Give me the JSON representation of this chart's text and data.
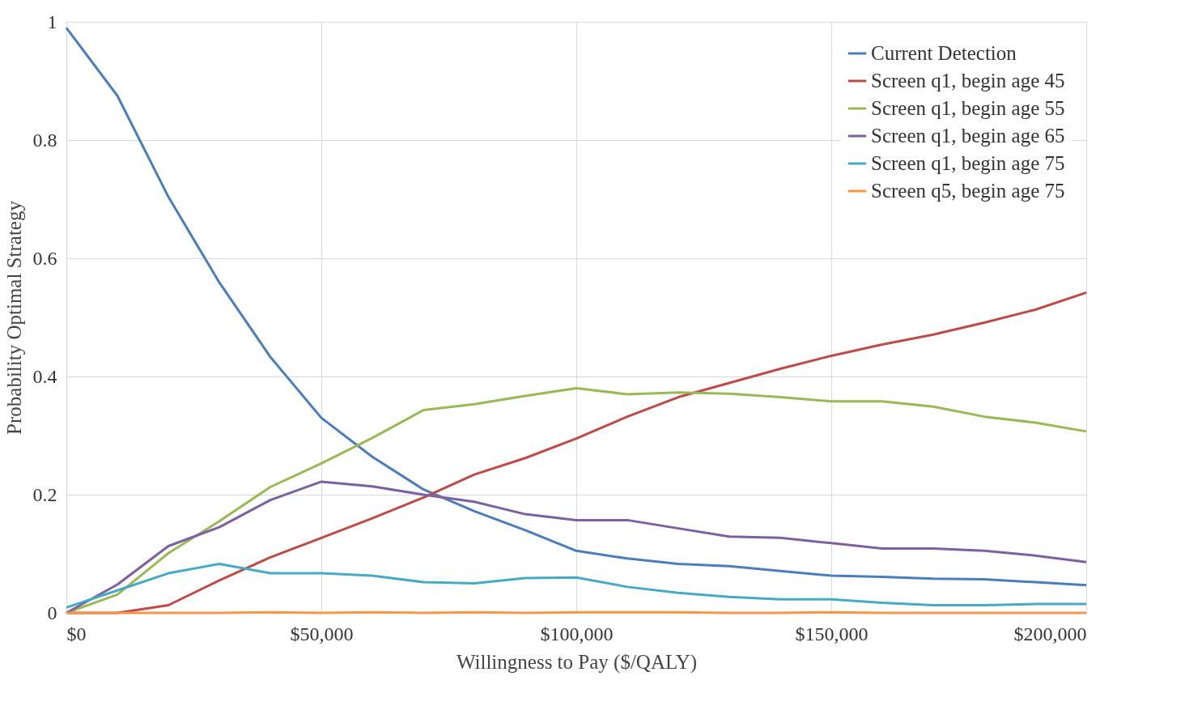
{
  "chart_data": {
    "type": "line",
    "xlabel": "Willingness to Pay ($/QALY)",
    "ylabel": "Probability Optimal Strategy",
    "x": [
      0,
      10000,
      20000,
      30000,
      40000,
      50000,
      60000,
      70000,
      80000,
      90000,
      100000,
      110000,
      120000,
      130000,
      140000,
      150000,
      160000,
      170000,
      180000,
      190000,
      200000
    ],
    "series": [
      {
        "name": "Current Detection",
        "color": "#4a7ebb",
        "values": [
          0.99,
          0.875,
          0.704,
          0.559,
          0.433,
          0.33,
          0.264,
          0.209,
          0.172,
          0.14,
          0.105,
          0.092,
          0.083,
          0.079,
          0.071,
          0.063,
          0.061,
          0.058,
          0.057,
          0.052,
          0.047
        ]
      },
      {
        "name": "Screen q1, begin age 45",
        "color": "#be4b48",
        "values": [
          0,
          0,
          0.013,
          0.055,
          0.094,
          0.127,
          0.16,
          0.195,
          0.234,
          0.262,
          0.295,
          0.332,
          0.365,
          0.389,
          0.413,
          0.435,
          0.454,
          0.471,
          0.491,
          0.513,
          0.542
        ]
      },
      {
        "name": "Screen q1, begin age 55",
        "color": "#98b954",
        "values": [
          0,
          0.031,
          0.101,
          0.155,
          0.213,
          0.253,
          0.296,
          0.343,
          0.353,
          0.367,
          0.38,
          0.37,
          0.373,
          0.371,
          0.365,
          0.358,
          0.358,
          0.349,
          0.332,
          0.322,
          0.307
        ]
      },
      {
        "name": "Screen q1, begin age 65",
        "color": "#7d60a0",
        "values": [
          0,
          0.048,
          0.113,
          0.145,
          0.191,
          0.222,
          0.214,
          0.2,
          0.188,
          0.167,
          0.157,
          0.157,
          0.143,
          0.129,
          0.127,
          0.118,
          0.109,
          0.109,
          0.105,
          0.097,
          0.086
        ]
      },
      {
        "name": "Screen q1, begin age 75",
        "color": "#46aac5",
        "values": [
          0.009,
          0.038,
          0.067,
          0.083,
          0.067,
          0.067,
          0.063,
          0.052,
          0.05,
          0.059,
          0.06,
          0.044,
          0.034,
          0.027,
          0.023,
          0.023,
          0.017,
          0.013,
          0.013,
          0.015,
          0.015
        ]
      },
      {
        "name": "Screen q5, begin age 75",
        "color": "#f79646",
        "values": [
          0,
          0,
          0,
          0,
          0.001,
          0,
          0.001,
          0,
          0.001,
          0,
          0.001,
          0.001,
          0.001,
          0,
          0,
          0.001,
          0,
          0,
          0,
          0,
          0
        ]
      }
    ],
    "xlim": [
      0,
      200000
    ],
    "ylim": [
      0,
      1
    ],
    "xticks": [
      {
        "value": 0,
        "label": "$0"
      },
      {
        "value": 50000,
        "label": "$50,000"
      },
      {
        "value": 100000,
        "label": "$100,000"
      },
      {
        "value": 150000,
        "label": "$150,000"
      },
      {
        "value": 200000,
        "label": "$200,000"
      }
    ],
    "yticks": [
      0,
      0.2,
      0.4,
      0.6,
      0.8,
      1
    ],
    "grid": true,
    "legend": "top right",
    "marker": "none",
    "line_style": "solid"
  }
}
